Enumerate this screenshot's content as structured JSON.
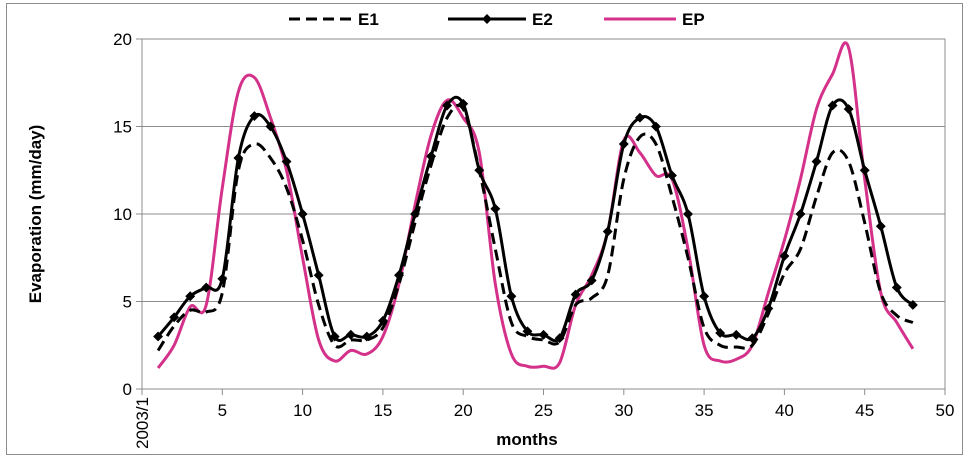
{
  "chart_data": {
    "type": "line",
    "title": "",
    "xlabel": "months",
    "ylabel": "Evaporation (mm/day)",
    "xlim": [
      0,
      50
    ],
    "ylim": [
      0,
      20
    ],
    "x_ticks": [
      "2003/1",
      "5",
      "10",
      "15",
      "20",
      "25",
      "30",
      "35",
      "40",
      "45",
      "50"
    ],
    "y_ticks": [
      "0",
      "5",
      "10",
      "15",
      "20"
    ],
    "grid": "horizontal",
    "legend_position": "top",
    "x": [
      1,
      2,
      3,
      4,
      5,
      6,
      7,
      8,
      9,
      10,
      11,
      12,
      13,
      14,
      15,
      16,
      17,
      18,
      19,
      20,
      21,
      22,
      23,
      24,
      25,
      26,
      27,
      28,
      29,
      30,
      31,
      32,
      33,
      34,
      35,
      36,
      37,
      38,
      39,
      40,
      41,
      42,
      43,
      44,
      45,
      46,
      47,
      48
    ],
    "series": [
      {
        "name": "E1",
        "color": "#000000",
        "style": "dashed",
        "values": [
          2.2,
          3.6,
          4.5,
          4.4,
          5.5,
          12.5,
          14.0,
          13.2,
          11.5,
          8.5,
          4.8,
          2.5,
          2.8,
          2.8,
          3.5,
          6.0,
          9.5,
          12.8,
          15.5,
          16.0,
          12.5,
          8.0,
          3.8,
          3.0,
          2.8,
          2.7,
          4.8,
          5.2,
          6.5,
          12.0,
          14.4,
          14.0,
          11.0,
          7.5,
          3.5,
          2.5,
          2.4,
          2.5,
          4.3,
          6.6,
          8.0,
          11.0,
          13.5,
          13.0,
          9.5,
          5.5,
          4.2,
          3.8
        ]
      },
      {
        "name": "E2",
        "color": "#000000",
        "style": "solid-marker",
        "values": [
          3.0,
          4.1,
          5.3,
          5.8,
          6.3,
          13.2,
          15.6,
          15.0,
          13.0,
          10.0,
          6.5,
          3.0,
          3.1,
          3.0,
          3.9,
          6.5,
          10.0,
          13.3,
          16.2,
          16.3,
          12.5,
          10.3,
          5.3,
          3.3,
          3.1,
          2.9,
          5.4,
          6.2,
          9.0,
          14.0,
          15.5,
          15.0,
          12.2,
          10.0,
          5.3,
          3.2,
          3.1,
          2.9,
          4.6,
          7.6,
          10.0,
          13.0,
          16.2,
          16.0,
          12.5,
          9.3,
          5.8,
          4.8
        ]
      },
      {
        "name": "EP",
        "color": "#d4318a",
        "style": "solid",
        "values": [
          1.2,
          2.5,
          4.7,
          4.8,
          11.5,
          17.0,
          17.8,
          15.5,
          12.5,
          7.5,
          2.8,
          1.6,
          2.2,
          2.0,
          3.0,
          6.0,
          10.5,
          14.5,
          16.5,
          15.5,
          13.5,
          6.0,
          2.0,
          1.3,
          1.3,
          1.5,
          4.8,
          6.5,
          9.0,
          14.2,
          13.5,
          12.2,
          12.0,
          8.0,
          2.5,
          1.6,
          1.7,
          2.5,
          5.5,
          8.5,
          12.0,
          16.0,
          18.0,
          19.5,
          12.0,
          5.5,
          3.8,
          2.3
        ]
      }
    ]
  }
}
